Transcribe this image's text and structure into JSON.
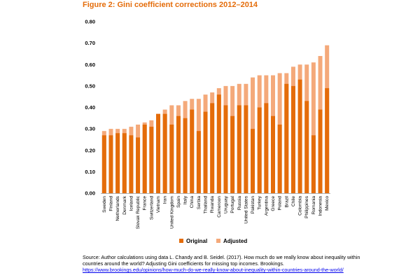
{
  "figure": {
    "title": "Figure 2: Gini coefficient corrections 2012–2014",
    "source_text": "Source: Author calculations using data L. Chandy and B. Seidel. (2017). How much do we really know about inequality within countries around the world? Adjusting Gini coefficients for missing top incomes. Brookings.",
    "source_link": "https://www.brookings.edu/opinions/how-much-do-we-really-know-about-inequality-within-countries-around-the-world/"
  },
  "colors": {
    "original": "#e46c0a",
    "adjusted": "#f4a97a",
    "axis": "#b0b0b0"
  },
  "chart_data": {
    "type": "bar",
    "stacked_overlay": true,
    "title": "Figure 2: Gini coefficient corrections 2012–2014",
    "xlabel": "",
    "ylabel": "",
    "ylim": [
      0,
      0.8
    ],
    "yticks": [
      0.0,
      0.1,
      0.2,
      0.3,
      0.4,
      0.5,
      0.6,
      0.7,
      0.8
    ],
    "ytick_labels": [
      "0.00",
      "0.10",
      "0.20",
      "0.30",
      "0.40",
      "0.50",
      "0.60",
      "0.70",
      "0.80"
    ],
    "grid": false,
    "legend_position": "bottom-center",
    "categories": [
      "Sweden",
      "Finland",
      "Netherlands",
      "Denmark",
      "Iceland",
      "Slovak Republic",
      "France",
      "Switzerland",
      "Vietnam",
      "Iran",
      "United Kingdom",
      "Spain",
      "Italy",
      "China",
      "Serbia",
      "Thailand",
      "Rwanda",
      "Cameroon",
      "Uruguay",
      "Portugal",
      "Russia",
      "United States",
      "Pakistan",
      "Turkey",
      "Argentina",
      "Greece",
      "Poland",
      "Brazil",
      "Chile",
      "Colombia",
      "Philippines",
      "Romania",
      "Indonesia",
      "Mexico"
    ],
    "series": [
      {
        "name": "Original",
        "values": [
          0.27,
          0.27,
          0.28,
          0.28,
          0.27,
          0.26,
          0.32,
          0.31,
          0.37,
          0.37,
          0.32,
          0.36,
          0.35,
          0.39,
          0.29,
          0.38,
          0.42,
          0.46,
          0.41,
          0.36,
          0.41,
          0.41,
          0.3,
          0.4,
          0.42,
          0.36,
          0.32,
          0.51,
          0.5,
          0.53,
          0.43,
          0.27,
          0.39,
          0.49
        ]
      },
      {
        "name": "Adjusted",
        "values": [
          0.29,
          0.3,
          0.3,
          0.3,
          0.31,
          0.32,
          0.33,
          0.34,
          0.37,
          0.39,
          0.41,
          0.41,
          0.43,
          0.44,
          0.44,
          0.46,
          0.47,
          0.49,
          0.5,
          0.5,
          0.51,
          0.51,
          0.54,
          0.55,
          0.55,
          0.55,
          0.56,
          0.56,
          0.59,
          0.6,
          0.6,
          0.61,
          0.64,
          0.69
        ]
      }
    ]
  }
}
